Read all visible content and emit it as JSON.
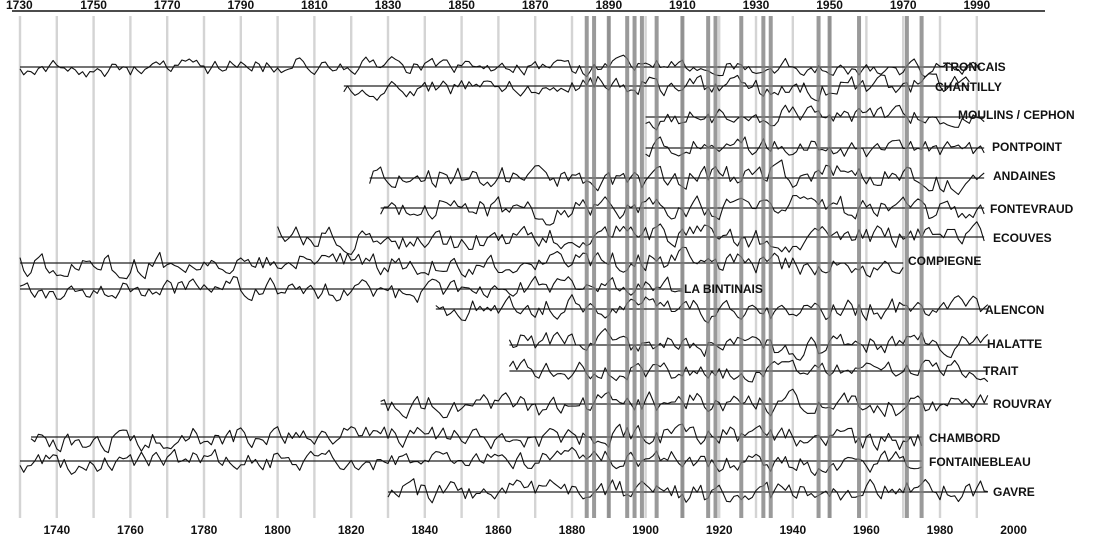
{
  "chart_data": {
    "type": "line",
    "title": "",
    "xlabel": "",
    "ylabel": "",
    "xlim": [
      1730,
      2000
    ],
    "top_axis_ticks": [
      "1730",
      "1750",
      "1770",
      "1790",
      "1810",
      "1830",
      "1850",
      "1870",
      "1890",
      "1910",
      "1930",
      "1950",
      "1970",
      "1990"
    ],
    "bottom_axis_ticks": [
      "1740",
      "1760",
      "1780",
      "1800",
      "1820",
      "1840",
      "1860",
      "1880",
      "1900",
      "1920",
      "1940",
      "1960",
      "1980",
      "2000"
    ],
    "light_gridlines": [
      1730,
      1740,
      1750,
      1760,
      1770,
      1780,
      1790,
      1800,
      1810,
      1820,
      1830,
      1840,
      1850,
      1860,
      1870,
      1880,
      1890,
      1900,
      1910,
      1920,
      1930,
      1940,
      1950,
      1960,
      1970,
      1980,
      1990
    ],
    "highlighted_years": [
      1884,
      1886,
      1890,
      1895,
      1897,
      1899,
      1903,
      1910,
      1917,
      1919,
      1926,
      1932,
      1934,
      1947,
      1950,
      1958,
      1971,
      1975
    ],
    "series": [
      {
        "name": "TRONCAIS",
        "start": 1730,
        "end": 1991
      },
      {
        "name": "CHANTILLY",
        "start": 1818,
        "end": 1988
      },
      {
        "name": "MOULINS / CEPHON",
        "start": 1900,
        "end": 1992
      },
      {
        "name": "PONTPOINT",
        "start": 1900,
        "end": 1992
      },
      {
        "name": "ANDAINES",
        "start": 1825,
        "end": 1992
      },
      {
        "name": "FONTEVRAUD",
        "start": 1828,
        "end": 1992
      },
      {
        "name": "ECOUVES",
        "start": 1800,
        "end": 1992
      },
      {
        "name": "COMPIEGNE",
        "start": 1730,
        "end": 1970
      },
      {
        "name": "LA BINTINAIS",
        "start": 1730,
        "end": 1910
      },
      {
        "name": "ALENCON",
        "start": 1843,
        "end": 1993
      },
      {
        "name": "HALATTE",
        "start": 1863,
        "end": 1993
      },
      {
        "name": "TRAIT",
        "start": 1863,
        "end": 1993
      },
      {
        "name": "ROUVRAY",
        "start": 1828,
        "end": 1993
      },
      {
        "name": "CHAMBORD",
        "start": 1733,
        "end": 1975
      },
      {
        "name": "FONTAINEBLEAU",
        "start": 1730,
        "end": 1975
      },
      {
        "name": "GAVRE",
        "start": 1830,
        "end": 1993
      }
    ]
  }
}
